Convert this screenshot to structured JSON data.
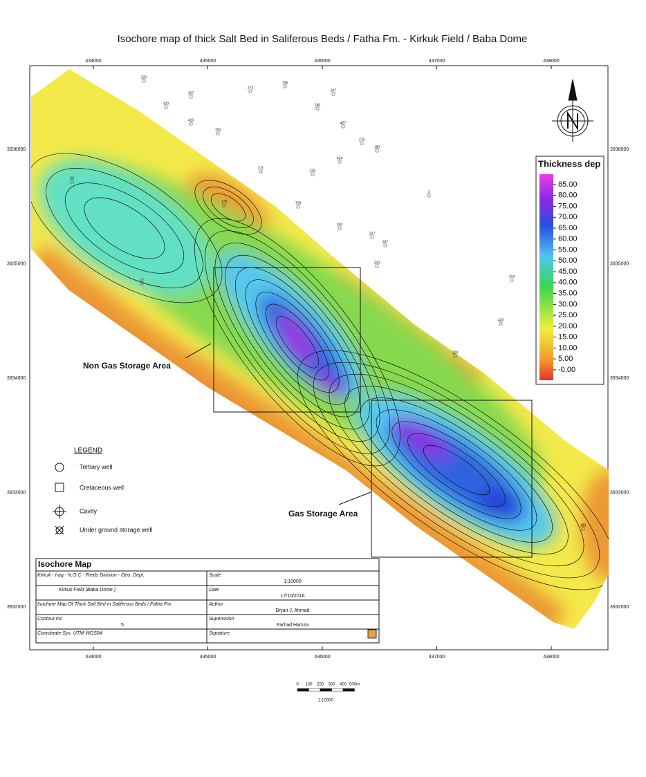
{
  "title": "Isochore map of thick Salt Bed in Saliferous Beds / Fatha  Fm.  -  Kirkuk Field / Baba Dome",
  "map": {
    "x_ticks": [
      "434000",
      "435000",
      "436000",
      "437000",
      "438000"
    ],
    "y_ticks": [
      "3936000",
      "3935000",
      "3934000",
      "3933000",
      "3932000"
    ],
    "areas": [
      "Non Gas Storage Area",
      "Gas Storage Area"
    ],
    "wells": [
      "220",
      "307",
      "420",
      "272",
      "735",
      "307",
      "240",
      "416",
      "427",
      "703",
      "278",
      "180",
      "424",
      "211",
      "226",
      "3",
      "179",
      "709",
      "240",
      "227",
      "337",
      "210",
      "414",
      "433",
      "12",
      "63",
      "229",
      "183"
    ]
  },
  "colorbar": {
    "title": "Thickness dep",
    "labels": [
      "85.00",
      "80.00",
      "75.00",
      "70.00",
      "65.00",
      "60.00",
      "55.00",
      "50.00",
      "45.00",
      "40.00",
      "35.00",
      "30.00",
      "25.00",
      "20.00",
      "15.00",
      "10.00",
      "5.00",
      "-0.00"
    ]
  },
  "legend": {
    "title": "LEGEND",
    "items": [
      "Tertiary well",
      "Cretaceous well",
      "Cavity",
      "Under ground storage well"
    ]
  },
  "title_block": {
    "heading": "Isochore  Map",
    "rows": [
      {
        "left": "Kirkuk - Iraq  -  N.O.C  - Fields Division  - Geo. Dept.",
        "label": "Scale",
        "value": "1:10000"
      },
      {
        "left": "Kirkuk  Field  (Baba Dome )",
        "label": "Date",
        "value": "17/10/2016"
      },
      {
        "left": "Isochore  Map Of Thick  Salt Bed in Saliferous Beds / Fatha Fm.",
        "label": "Author",
        "value": "Diyari   J.  Ahmad"
      },
      {
        "left": "Contour inc",
        "left_value": "5",
        "label": "Supervision",
        "value": "Farhad  Hamza"
      },
      {
        "left": "Coordinate  Sys.    UTM-WGS84",
        "label": "Signature"
      }
    ]
  },
  "scale_bar": {
    "labels": [
      "0",
      "100",
      "200",
      "300",
      "400",
      "500m"
    ],
    "ratio": "1:10000"
  }
}
